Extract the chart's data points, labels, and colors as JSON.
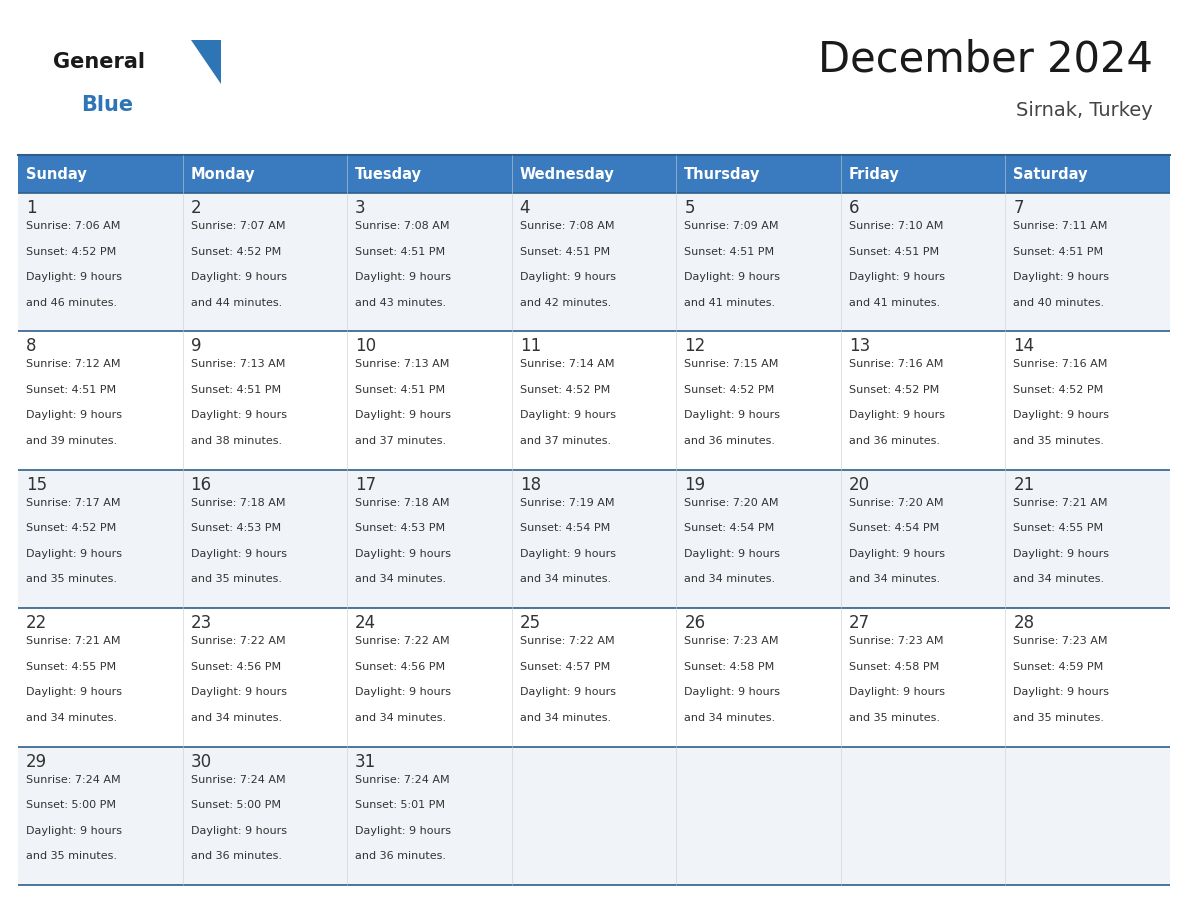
{
  "title": "December 2024",
  "subtitle": "Sirnak, Turkey",
  "days_of_week": [
    "Sunday",
    "Monday",
    "Tuesday",
    "Wednesday",
    "Thursday",
    "Friday",
    "Saturday"
  ],
  "header_bg": "#3a7abf",
  "header_text_color": "#ffffff",
  "cell_bg_odd": "#f0f4f8",
  "cell_bg_even": "#ffffff",
  "text_color": "#333333",
  "border_color": "#2e5f8a",
  "general_text_color": "#1a1a1a",
  "general_blue_color": "#2e75b6",
  "calendar_data": [
    [
      {
        "day": 1,
        "sunrise": "7:06 AM",
        "sunset": "4:52 PM",
        "daylight": "9 hours and 46 minutes."
      },
      {
        "day": 2,
        "sunrise": "7:07 AM",
        "sunset": "4:52 PM",
        "daylight": "9 hours and 44 minutes."
      },
      {
        "day": 3,
        "sunrise": "7:08 AM",
        "sunset": "4:51 PM",
        "daylight": "9 hours and 43 minutes."
      },
      {
        "day": 4,
        "sunrise": "7:08 AM",
        "sunset": "4:51 PM",
        "daylight": "9 hours and 42 minutes."
      },
      {
        "day": 5,
        "sunrise": "7:09 AM",
        "sunset": "4:51 PM",
        "daylight": "9 hours and 41 minutes."
      },
      {
        "day": 6,
        "sunrise": "7:10 AM",
        "sunset": "4:51 PM",
        "daylight": "9 hours and 41 minutes."
      },
      {
        "day": 7,
        "sunrise": "7:11 AM",
        "sunset": "4:51 PM",
        "daylight": "9 hours and 40 minutes."
      }
    ],
    [
      {
        "day": 8,
        "sunrise": "7:12 AM",
        "sunset": "4:51 PM",
        "daylight": "9 hours and 39 minutes."
      },
      {
        "day": 9,
        "sunrise": "7:13 AM",
        "sunset": "4:51 PM",
        "daylight": "9 hours and 38 minutes."
      },
      {
        "day": 10,
        "sunrise": "7:13 AM",
        "sunset": "4:51 PM",
        "daylight": "9 hours and 37 minutes."
      },
      {
        "day": 11,
        "sunrise": "7:14 AM",
        "sunset": "4:52 PM",
        "daylight": "9 hours and 37 minutes."
      },
      {
        "day": 12,
        "sunrise": "7:15 AM",
        "sunset": "4:52 PM",
        "daylight": "9 hours and 36 minutes."
      },
      {
        "day": 13,
        "sunrise": "7:16 AM",
        "sunset": "4:52 PM",
        "daylight": "9 hours and 36 minutes."
      },
      {
        "day": 14,
        "sunrise": "7:16 AM",
        "sunset": "4:52 PM",
        "daylight": "9 hours and 35 minutes."
      }
    ],
    [
      {
        "day": 15,
        "sunrise": "7:17 AM",
        "sunset": "4:52 PM",
        "daylight": "9 hours and 35 minutes."
      },
      {
        "day": 16,
        "sunrise": "7:18 AM",
        "sunset": "4:53 PM",
        "daylight": "9 hours and 35 minutes."
      },
      {
        "day": 17,
        "sunrise": "7:18 AM",
        "sunset": "4:53 PM",
        "daylight": "9 hours and 34 minutes."
      },
      {
        "day": 18,
        "sunrise": "7:19 AM",
        "sunset": "4:54 PM",
        "daylight": "9 hours and 34 minutes."
      },
      {
        "day": 19,
        "sunrise": "7:20 AM",
        "sunset": "4:54 PM",
        "daylight": "9 hours and 34 minutes."
      },
      {
        "day": 20,
        "sunrise": "7:20 AM",
        "sunset": "4:54 PM",
        "daylight": "9 hours and 34 minutes."
      },
      {
        "day": 21,
        "sunrise": "7:21 AM",
        "sunset": "4:55 PM",
        "daylight": "9 hours and 34 minutes."
      }
    ],
    [
      {
        "day": 22,
        "sunrise": "7:21 AM",
        "sunset": "4:55 PM",
        "daylight": "9 hours and 34 minutes."
      },
      {
        "day": 23,
        "sunrise": "7:22 AM",
        "sunset": "4:56 PM",
        "daylight": "9 hours and 34 minutes."
      },
      {
        "day": 24,
        "sunrise": "7:22 AM",
        "sunset": "4:56 PM",
        "daylight": "9 hours and 34 minutes."
      },
      {
        "day": 25,
        "sunrise": "7:22 AM",
        "sunset": "4:57 PM",
        "daylight": "9 hours and 34 minutes."
      },
      {
        "day": 26,
        "sunrise": "7:23 AM",
        "sunset": "4:58 PM",
        "daylight": "9 hours and 34 minutes."
      },
      {
        "day": 27,
        "sunrise": "7:23 AM",
        "sunset": "4:58 PM",
        "daylight": "9 hours and 35 minutes."
      },
      {
        "day": 28,
        "sunrise": "7:23 AM",
        "sunset": "4:59 PM",
        "daylight": "9 hours and 35 minutes."
      }
    ],
    [
      {
        "day": 29,
        "sunrise": "7:24 AM",
        "sunset": "5:00 PM",
        "daylight": "9 hours and 35 minutes."
      },
      {
        "day": 30,
        "sunrise": "7:24 AM",
        "sunset": "5:00 PM",
        "daylight": "9 hours and 36 minutes."
      },
      {
        "day": 31,
        "sunrise": "7:24 AM",
        "sunset": "5:01 PM",
        "daylight": "9 hours and 36 minutes."
      },
      null,
      null,
      null,
      null
    ]
  ]
}
